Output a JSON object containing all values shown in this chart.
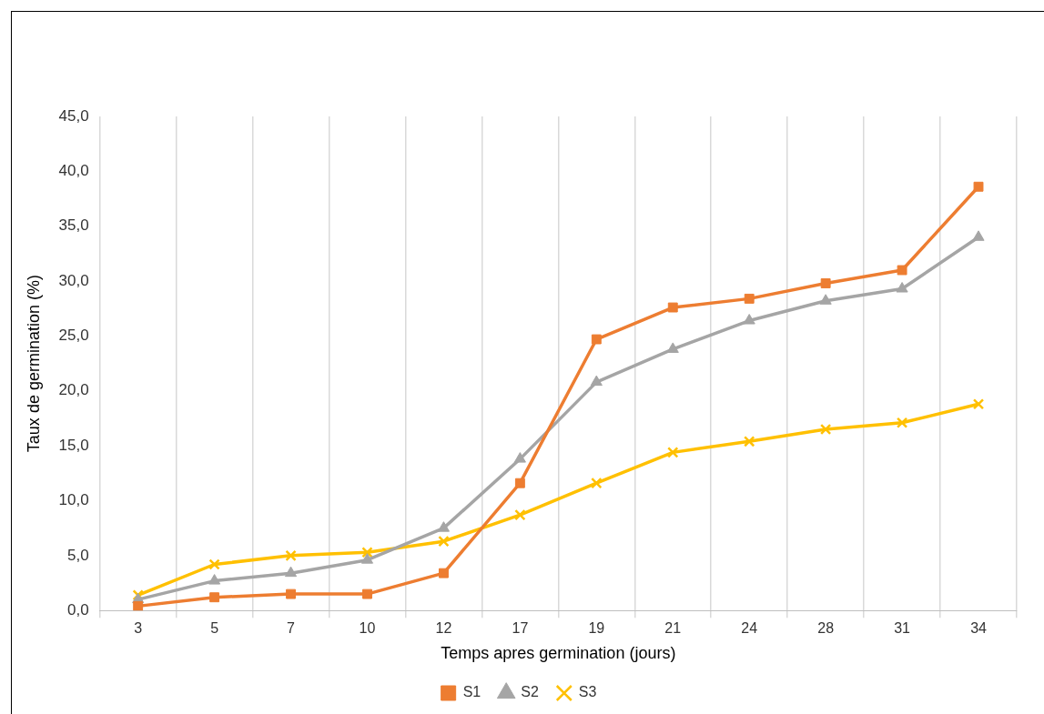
{
  "chart_data": {
    "type": "line",
    "xlabel": "Temps apres germination (jours)",
    "ylabel": "Taux de germination (%)",
    "categories": [
      "3",
      "5",
      "7",
      "10",
      "12",
      "17",
      "19",
      "21",
      "24",
      "28",
      "31",
      "34"
    ],
    "series": [
      {
        "name": "S1",
        "color": "#ed7d31",
        "marker": "square",
        "values": [
          0.4,
          1.2,
          1.5,
          1.5,
          3.4,
          11.6,
          24.7,
          27.6,
          28.4,
          29.8,
          31.0,
          38.6
        ]
      },
      {
        "name": "S2",
        "color": "#a5a5a5",
        "marker": "triangle",
        "values": [
          1.0,
          2.7,
          3.4,
          4.6,
          7.5,
          13.8,
          20.8,
          23.8,
          26.4,
          28.2,
          29.3,
          34.0
        ]
      },
      {
        "name": "S3",
        "color": "#ffc000",
        "marker": "cross",
        "values": [
          1.4,
          4.2,
          5.0,
          5.3,
          6.3,
          8.7,
          11.6,
          14.4,
          15.4,
          16.5,
          17.1,
          18.8
        ]
      }
    ],
    "ylim": [
      0,
      45
    ],
    "yticks": [
      {
        "value": 0,
        "label": "0,0"
      },
      {
        "value": 5,
        "label": "5,0"
      },
      {
        "value": 10,
        "label": "10,0"
      },
      {
        "value": 15,
        "label": "15,0"
      },
      {
        "value": 20,
        "label": "20,0"
      },
      {
        "value": 25,
        "label": "25,0"
      },
      {
        "value": 30,
        "label": "30,0"
      },
      {
        "value": 35,
        "label": "35,0"
      },
      {
        "value": 40,
        "label": "40,0"
      },
      {
        "value": 45,
        "label": "45,0"
      }
    ],
    "grid": "x",
    "legend": "bottom",
    "line_style": "solid"
  }
}
